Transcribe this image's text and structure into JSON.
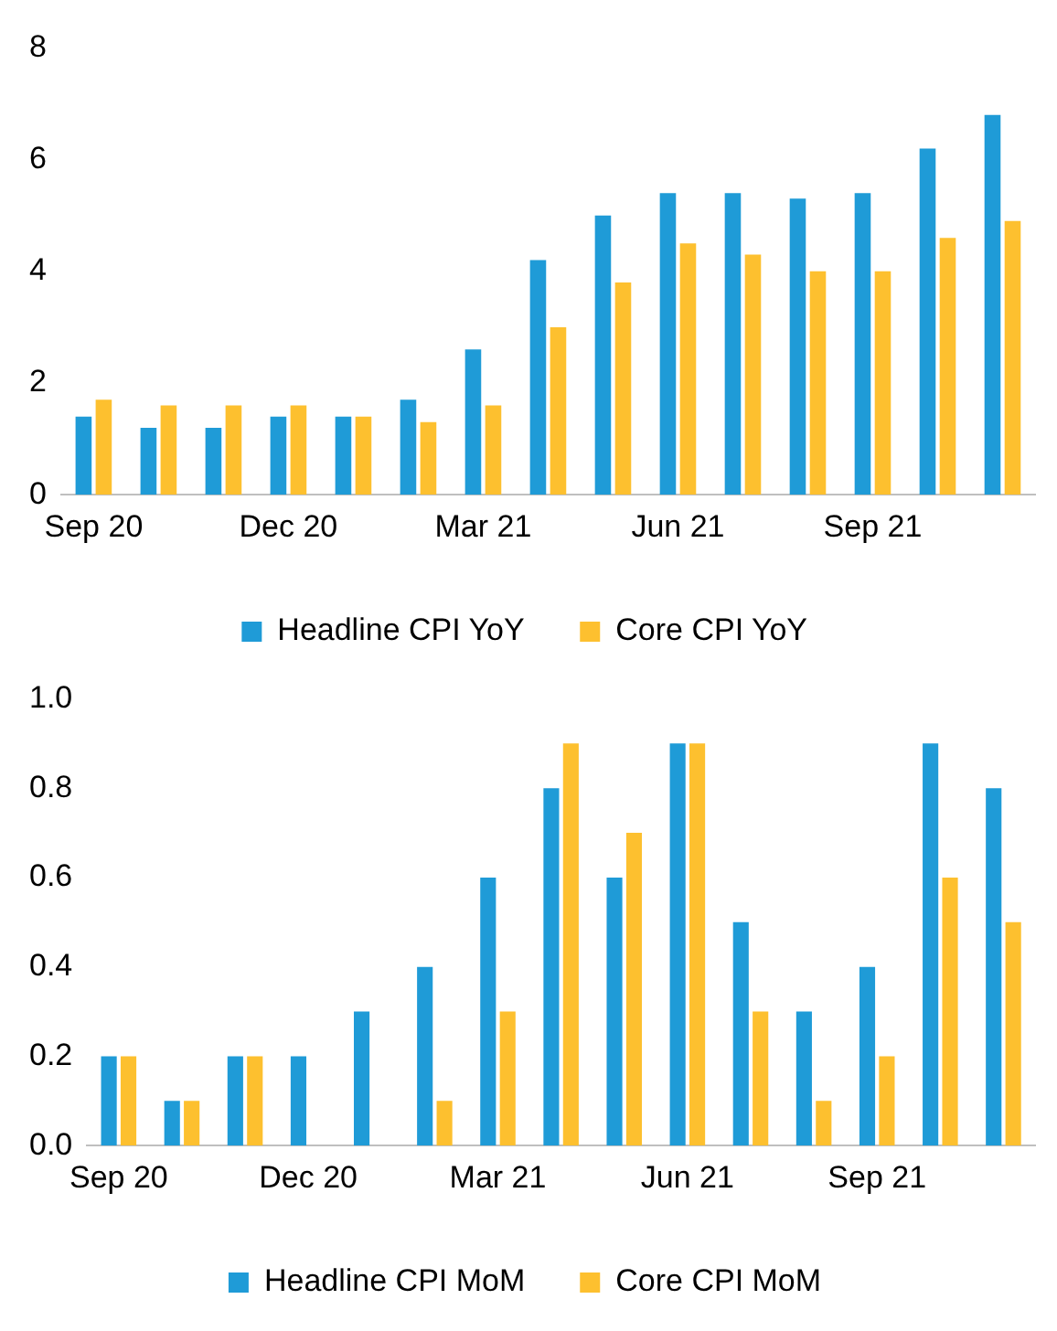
{
  "chart_data": [
    {
      "type": "bar",
      "categories": [
        "Sep 20",
        null,
        null,
        "Dec 20",
        null,
        null,
        "Mar 21",
        null,
        null,
        "Jun 21",
        null,
        null,
        "Sep 21",
        null,
        null
      ],
      "series": [
        {
          "name": "Headline CPI YoY",
          "color": "#1f9bd7",
          "values": [
            1.4,
            1.2,
            1.2,
            1.4,
            1.4,
            1.7,
            2.6,
            4.2,
            5.0,
            5.4,
            5.4,
            5.3,
            5.4,
            6.2,
            6.8
          ]
        },
        {
          "name": "Core CPI YoY",
          "color": "#fdc02f",
          "values": [
            1.7,
            1.6,
            1.6,
            1.6,
            1.4,
            1.3,
            1.6,
            3.0,
            3.8,
            4.5,
            4.3,
            4.0,
            4.0,
            4.6,
            4.9
          ]
        }
      ],
      "ylim": [
        0,
        8
      ],
      "yticks": [
        0,
        2,
        4,
        6,
        8
      ],
      "legend": "bottom"
    },
    {
      "type": "bar",
      "categories": [
        "Sep 20",
        null,
        null,
        "Dec 20",
        null,
        null,
        "Mar 21",
        null,
        null,
        "Jun 21",
        null,
        null,
        "Sep 21",
        null,
        null
      ],
      "series": [
        {
          "name": "Headline CPI MoM",
          "color": "#1f9bd7",
          "values": [
            0.2,
            0.1,
            0.2,
            0.2,
            0.3,
            0.4,
            0.6,
            0.8,
            0.6,
            0.9,
            0.5,
            0.3,
            0.4,
            0.9,
            0.8
          ]
        },
        {
          "name": "Core CPI MoM",
          "color": "#fdc02f",
          "values": [
            0.2,
            0.1,
            0.2,
            0.0,
            0.0,
            0.1,
            0.3,
            0.9,
            0.7,
            0.9,
            0.3,
            0.1,
            0.2,
            0.6,
            0.5
          ]
        }
      ],
      "ylim": [
        0,
        1
      ],
      "yticks": [
        {
          "value": 0,
          "label": "0.0"
        },
        0.2,
        0.4,
        0.6,
        0.8,
        {
          "value": 1,
          "label": "1.0"
        }
      ],
      "legend": "bottom"
    }
  ]
}
